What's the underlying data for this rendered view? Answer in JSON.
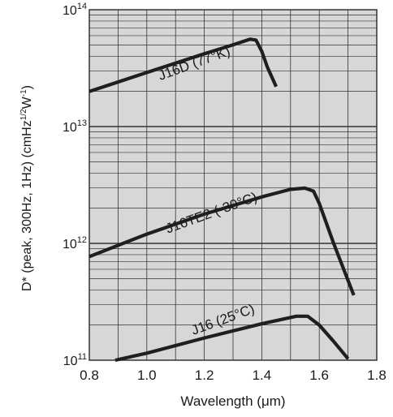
{
  "chart_data": {
    "type": "line",
    "xlabel": "Wavelength (μm)",
    "ylabel": "D* (peak, 300Hz, 1Hz)  (cmHz",
    "ylabel_sup1": "1/2",
    "ylabel_mid": "W",
    "ylabel_sup2": "-1",
    "ylabel_end": ")",
    "xlim": [
      0.8,
      1.8
    ],
    "ylim": [
      100000000000,
      100000000000000
    ],
    "yscale": "log",
    "grid": true,
    "x_ticks": [
      "0.8",
      "1.0",
      "1.2",
      "1.4",
      "1.6",
      "1.8"
    ],
    "x_tick_values": [
      0.8,
      1.0,
      1.2,
      1.4,
      1.6,
      1.8
    ],
    "y_ticks": [
      {
        "base": "10",
        "exp": "11",
        "value": 100000000000
      },
      {
        "base": "10",
        "exp": "12",
        "value": 1000000000000
      },
      {
        "base": "10",
        "exp": "13",
        "value": 10000000000000
      },
      {
        "base": "10",
        "exp": "14",
        "value": 100000000000000
      }
    ],
    "series": [
      {
        "name": "J16D (77°K)",
        "label_at": [
          1.17,
          32000000000000
        ],
        "label_angle": -20,
        "x": [
          0.8,
          1.0,
          1.2,
          1.3,
          1.36,
          1.38,
          1.4,
          1.42,
          1.45
        ],
        "y": [
          20000000000000,
          29000000000000,
          42000000000000,
          50000000000000,
          56000000000000,
          55000000000000,
          44000000000000,
          32000000000000,
          22000000000000
        ]
      },
      {
        "name": "J16TE2 (-30°C)",
        "label_at": [
          1.23,
          1680000000000
        ],
        "label_angle": -20,
        "x": [
          0.8,
          1.0,
          1.2,
          1.4,
          1.5,
          1.55,
          1.58,
          1.6,
          1.65,
          1.72
        ],
        "y": [
          770000000000,
          1200000000000,
          1780000000000,
          2500000000000,
          2900000000000,
          2970000000000,
          2800000000000,
          2200000000000,
          1000000000000,
          360000000000
        ]
      },
      {
        "name": "J16 (25°C)",
        "label_at": [
          1.27,
          205000000000
        ],
        "label_angle": -20,
        "x": [
          0.89,
          1.0,
          1.2,
          1.4,
          1.52,
          1.56,
          1.6,
          1.65,
          1.7
        ],
        "y": [
          100000000000,
          115000000000,
          155000000000,
          205000000000,
          238000000000,
          238000000000,
          200000000000,
          145000000000,
          103000000000
        ]
      }
    ]
  }
}
